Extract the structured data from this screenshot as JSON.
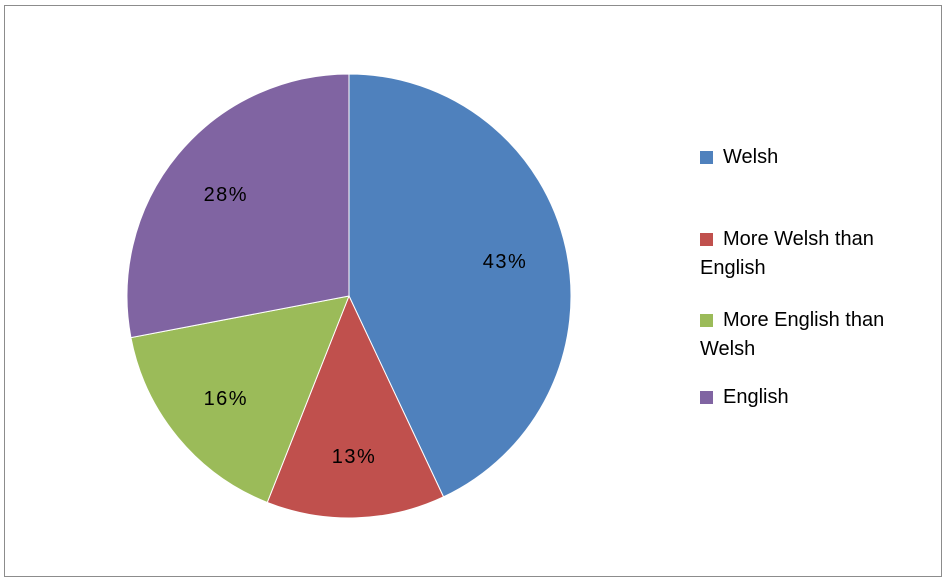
{
  "chart_data": {
    "type": "pie",
    "categories": [
      "Welsh",
      "More Welsh than English",
      "More English than Welsh",
      "English"
    ],
    "values": [
      43,
      13,
      16,
      28
    ],
    "data_labels": [
      "43%",
      "13%",
      "16%",
      "28%"
    ],
    "colors": [
      "#4F81BD",
      "#C0504D",
      "#9BBB59",
      "#8064A2"
    ],
    "title": "",
    "legend_position": "right",
    "start_angle": "12 o'clock",
    "direction": "clockwise"
  },
  "legend": {
    "items": [
      {
        "label": "Welsh",
        "color": "#4F81BD"
      },
      {
        "label": "More Welsh than\nEnglish",
        "color": "#C0504D"
      },
      {
        "label": "More English than\nWelsh",
        "color": "#9BBB59"
      },
      {
        "label": "English",
        "color": "#8064A2"
      }
    ]
  }
}
